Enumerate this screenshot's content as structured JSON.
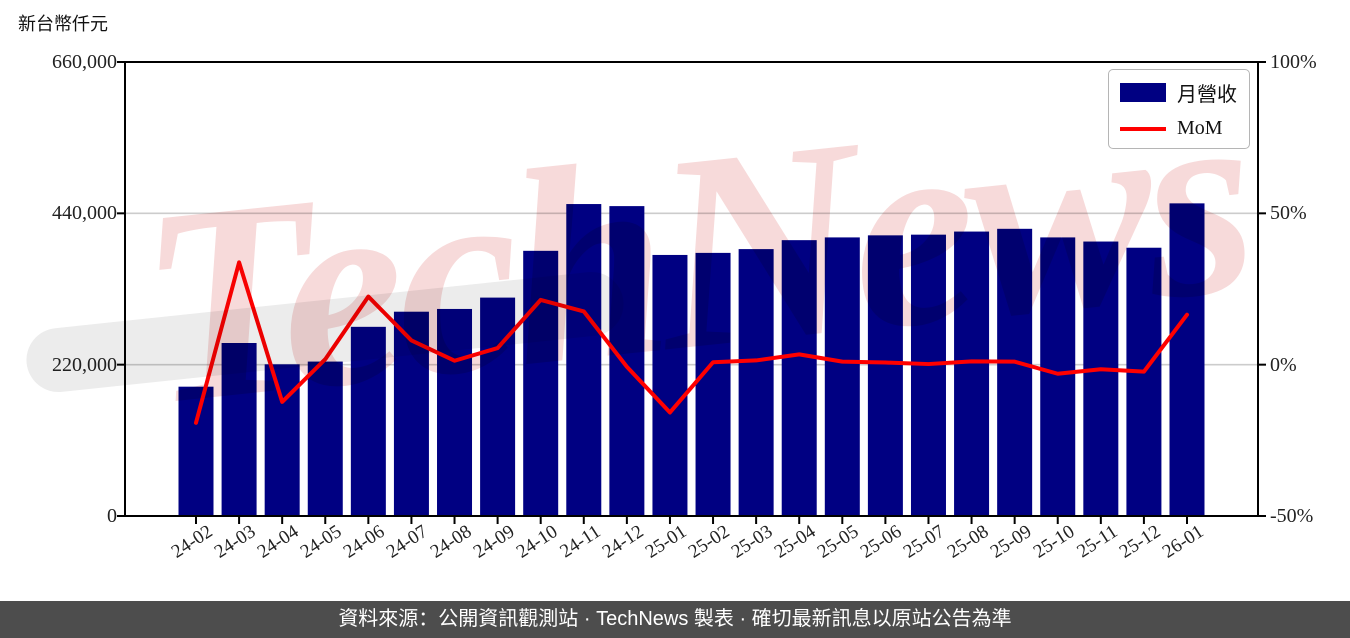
{
  "watermark": {
    "text": "TechNews",
    "color": "#f7dada",
    "swoosh_color": "#ececec"
  },
  "legend": {
    "position": "top-right"
  },
  "footer": {
    "text": "資料來源：公開資訊觀測站 · TechNews 製表 · 確切最新訊息以原站公告為準",
    "background": "#4d4d4d"
  },
  "chart_data": {
    "type": "bar",
    "title": "",
    "categories": [
      "24-02",
      "24-03",
      "24-04",
      "24-05",
      "24-06",
      "24-07",
      "24-08",
      "24-09",
      "24-10",
      "24-11",
      "24-12",
      "25-01",
      "25-02",
      "25-03",
      "25-04",
      "25-05",
      "25-06",
      "25-07",
      "25-08",
      "25-09",
      "25-10",
      "25-11",
      "25-12",
      "26-01"
    ],
    "series": [
      {
        "name": "月營收",
        "type": "bar",
        "axis": "left",
        "color": "#000082",
        "values": [
          188000,
          251500,
          220500,
          224500,
          275000,
          297000,
          301000,
          317500,
          385500,
          453500,
          450500,
          379500,
          382500,
          388000,
          401000,
          405000,
          408000,
          409000,
          413500,
          417500,
          405000,
          399000,
          390000,
          454500
        ]
      },
      {
        "name": "MoM",
        "type": "line",
        "axis": "right",
        "color": "#ff0000",
        "values": [
          -19.2,
          33.8,
          -12.3,
          1.8,
          22.5,
          8.0,
          1.3,
          5.5,
          21.4,
          17.6,
          -0.7,
          -15.8,
          0.8,
          1.4,
          3.4,
          1.0,
          0.7,
          0.2,
          1.1,
          1.0,
          -3.0,
          -1.5,
          -2.3,
          16.5
        ]
      }
    ],
    "left_axis": {
      "unit": "新台幣仟元",
      "min": 0,
      "max": 660000,
      "ticks": [
        {
          "label": "0",
          "value": 0
        },
        {
          "label": "220,000",
          "value": 220000
        },
        {
          "label": "440,000",
          "value": 440000
        },
        {
          "label": "660,000",
          "value": 660000
        }
      ]
    },
    "right_axis": {
      "unit": "%",
      "min": -50,
      "max": 100,
      "ticks": [
        {
          "label": "-50%",
          "value": -50
        },
        {
          "label": "0%",
          "value": 0
        },
        {
          "label": "50%",
          "value": 50
        },
        {
          "label": "100%",
          "value": 100
        }
      ]
    },
    "grid": "horizontal",
    "grid_color": "#cccccc",
    "legend_position": "top-right"
  }
}
